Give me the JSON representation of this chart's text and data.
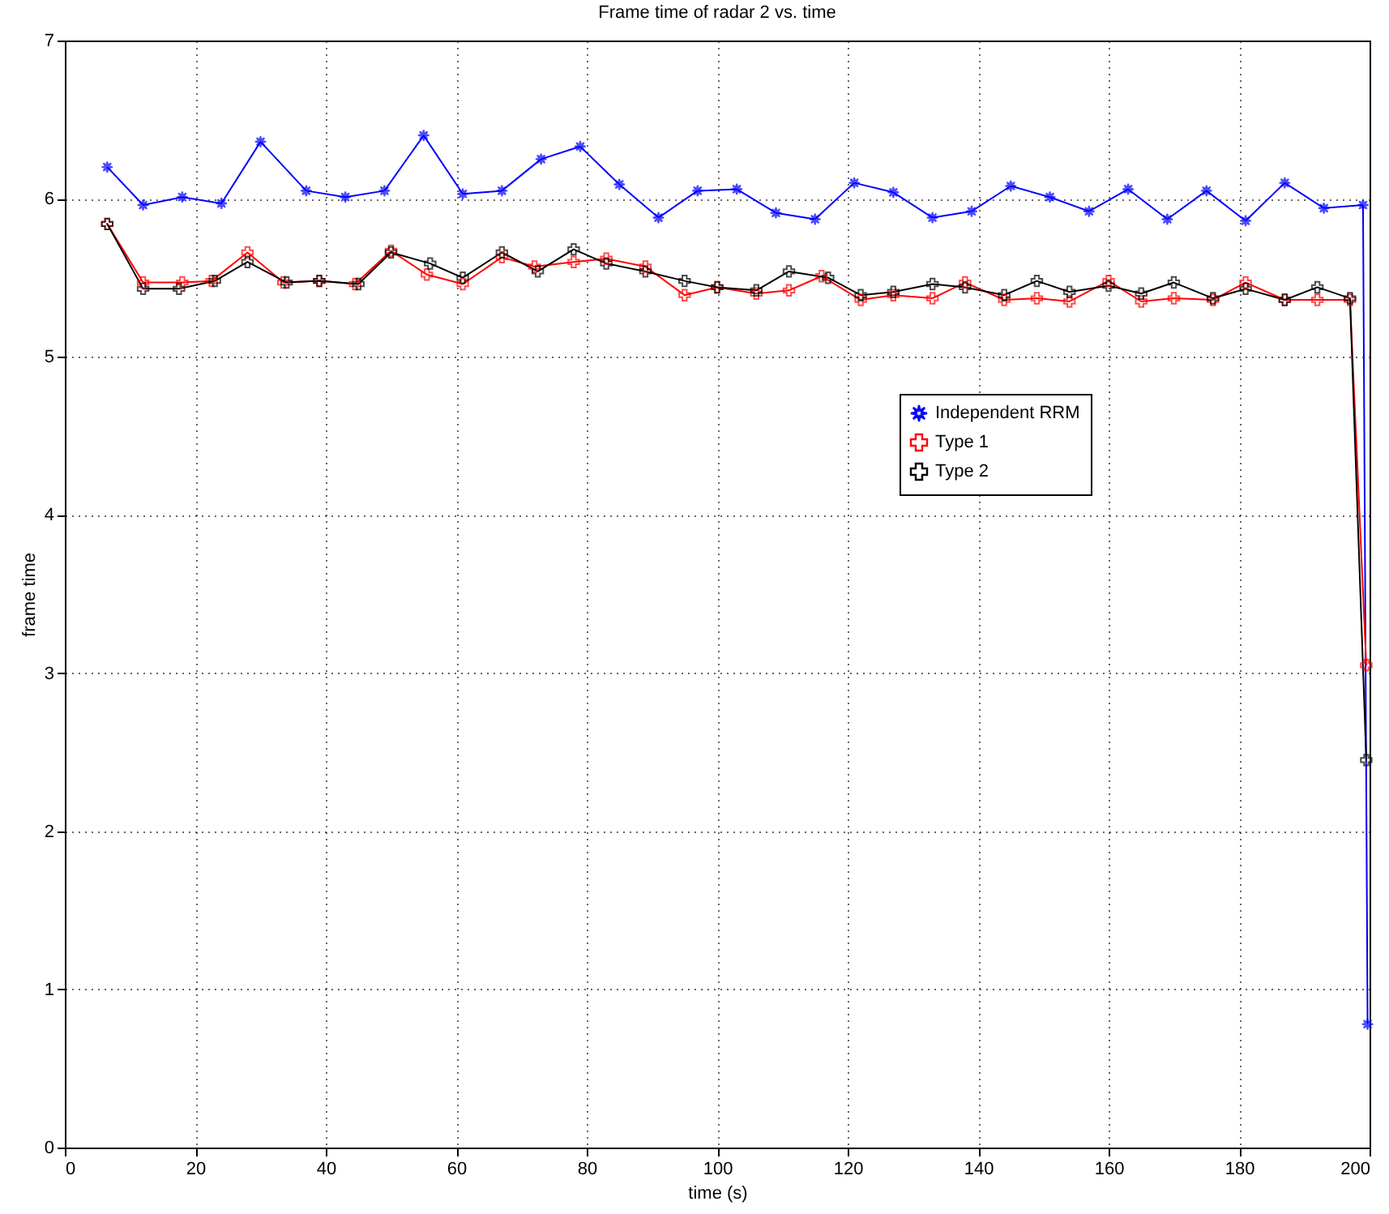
{
  "chart_data": {
    "type": "line",
    "title": "Frame time of radar 2 vs. time",
    "xlabel": "time (s)",
    "ylabel": "frame time",
    "xlim": [
      0,
      200
    ],
    "ylim": [
      0,
      7
    ],
    "xticks": [
      0,
      20,
      40,
      60,
      80,
      100,
      120,
      140,
      160,
      180,
      200
    ],
    "yticks": [
      0,
      1,
      2,
      3,
      4,
      5,
      6,
      7
    ],
    "grid": true,
    "legend": "right",
    "line_style": "solid",
    "series": [
      {
        "name": "Independent RRM",
        "color": "#0000ff",
        "marker": "star",
        "x": [
          6.5,
          12,
          18,
          24,
          30,
          37,
          43,
          49,
          55,
          61,
          67,
          73,
          79,
          85,
          91,
          97,
          103,
          109,
          115,
          121,
          127,
          133,
          139,
          145,
          151,
          157,
          163,
          169,
          175,
          181,
          187,
          193,
          199,
          199.7
        ],
        "values": [
          6.2,
          5.96,
          6.01,
          5.97,
          6.36,
          6.05,
          6.01,
          6.05,
          6.4,
          6.03,
          6.05,
          6.25,
          6.33,
          6.09,
          5.88,
          6.05,
          6.06,
          5.91,
          5.87,
          6.1,
          6.04,
          5.88,
          5.92,
          6.08,
          6.01,
          5.92,
          6.06,
          5.87,
          6.05,
          5.86,
          6.1,
          5.94,
          5.96,
          0.78
        ]
      },
      {
        "name": "Type 1",
        "color": "#ff0000",
        "marker": "cross",
        "x": [
          6.5,
          12,
          18,
          22.5,
          28,
          33.5,
          39,
          44.5,
          50,
          55.5,
          61,
          67,
          72,
          78,
          83,
          89,
          95,
          100,
          106,
          111,
          116,
          122,
          127,
          133,
          138,
          144,
          149,
          154,
          160,
          165,
          170,
          176,
          181,
          187,
          192,
          197,
          199.5
        ],
        "values": [
          5.84,
          5.47,
          5.47,
          5.48,
          5.66,
          5.47,
          5.48,
          5.46,
          5.67,
          5.52,
          5.46,
          5.63,
          5.57,
          5.6,
          5.62,
          5.57,
          5.39,
          5.44,
          5.4,
          5.42,
          5.51,
          5.36,
          5.39,
          5.37,
          5.47,
          5.36,
          5.37,
          5.35,
          5.48,
          5.35,
          5.37,
          5.36,
          5.47,
          5.36,
          5.36,
          5.36,
          3.05
        ]
      },
      {
        "name": "Type 2",
        "color": "#000000",
        "marker": "cross",
        "x": [
          6.5,
          12,
          17.5,
          23,
          28,
          34,
          39,
          45,
          50,
          56,
          61,
          67,
          72.5,
          78,
          83,
          89,
          95,
          100,
          106,
          111,
          117,
          122,
          127,
          133,
          138,
          144,
          149,
          154,
          160,
          165,
          170,
          176,
          181,
          187,
          192,
          197,
          199.5
        ],
        "values": [
          5.84,
          5.43,
          5.43,
          5.48,
          5.6,
          5.47,
          5.48,
          5.46,
          5.66,
          5.59,
          5.5,
          5.66,
          5.54,
          5.68,
          5.59,
          5.54,
          5.48,
          5.44,
          5.42,
          5.54,
          5.5,
          5.39,
          5.41,
          5.46,
          5.44,
          5.39,
          5.48,
          5.41,
          5.45,
          5.4,
          5.47,
          5.37,
          5.43,
          5.36,
          5.44,
          5.37,
          2.45
        ]
      }
    ]
  }
}
